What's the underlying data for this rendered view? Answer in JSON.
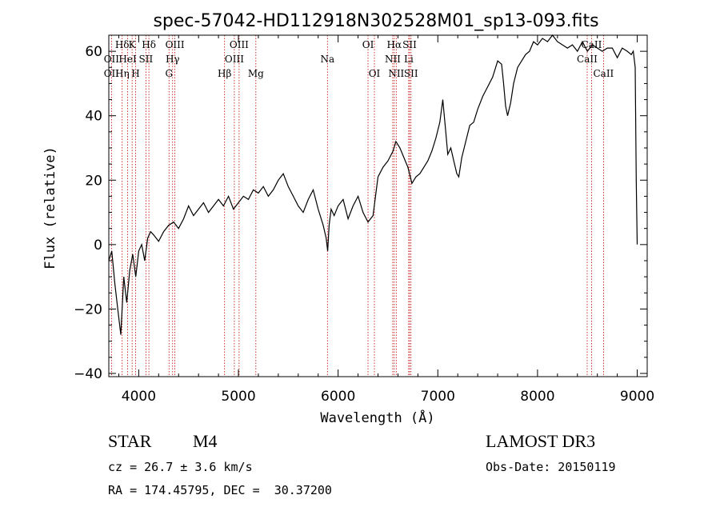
{
  "chart_data": {
    "type": "line",
    "title": "spec-57042-HD112918N302528M01_sp13-093.fits",
    "xlabel": "Wavelength (Å)",
    "ylabel": "Flux (relative)",
    "xlim": [
      3700,
      9100
    ],
    "ylim": [
      -41,
      65
    ],
    "xticks": [
      4000,
      5000,
      6000,
      7000,
      8000,
      9000
    ],
    "yticks": [
      -40,
      -20,
      0,
      20,
      40,
      60
    ],
    "series": [
      {
        "name": "spectrum",
        "x": [
          3700,
          3730,
          3760,
          3790,
          3820,
          3850,
          3880,
          3910,
          3940,
          3970,
          4000,
          4030,
          4060,
          4090,
          4120,
          4150,
          4200,
          4250,
          4300,
          4350,
          4400,
          4450,
          4500,
          4550,
          4600,
          4650,
          4700,
          4750,
          4800,
          4850,
          4900,
          4950,
          5000,
          5050,
          5100,
          5150,
          5200,
          5250,
          5300,
          5350,
          5400,
          5450,
          5500,
          5550,
          5600,
          5650,
          5700,
          5750,
          5800,
          5850,
          5880,
          5895,
          5910,
          5930,
          5960,
          6000,
          6050,
          6100,
          6150,
          6200,
          6250,
          6300,
          6350,
          6400,
          6450,
          6500,
          6550,
          6580,
          6620,
          6660,
          6700,
          6740,
          6780,
          6820,
          6860,
          6900,
          6940,
          6980,
          7020,
          7050,
          7080,
          7100,
          7130,
          7160,
          7190,
          7210,
          7240,
          7280,
          7320,
          7360,
          7400,
          7450,
          7500,
          7550,
          7600,
          7640,
          7660,
          7680,
          7700,
          7730,
          7760,
          7800,
          7840,
          7880,
          7920,
          7960,
          8000,
          8050,
          8100,
          8150,
          8200,
          8250,
          8300,
          8350,
          8400,
          8450,
          8500,
          8550,
          8600,
          8650,
          8700,
          8750,
          8800,
          8850,
          8900,
          8940,
          8960,
          8980,
          8990,
          9000
        ],
        "values": [
          -5,
          -2,
          -12,
          -20,
          -28,
          -10,
          -18,
          -8,
          -3,
          -10,
          -2,
          0,
          -5,
          2,
          4,
          3,
          1,
          4,
          6,
          7,
          5,
          8,
          12,
          9,
          11,
          13,
          10,
          12,
          14,
          12,
          15,
          11,
          13,
          15,
          14,
          17,
          16,
          18,
          15,
          17,
          20,
          22,
          18,
          15,
          12,
          10,
          14,
          17,
          11,
          6,
          2,
          -2,
          6,
          11,
          9,
          12,
          14,
          8,
          12,
          15,
          10,
          7,
          9,
          21,
          24,
          26,
          29,
          32,
          30,
          27,
          24,
          19,
          21,
          22,
          24,
          26,
          29,
          33,
          38,
          45,
          35,
          28,
          30,
          26,
          22,
          21,
          27,
          32,
          37,
          38,
          42,
          46,
          49,
          52,
          57,
          56,
          50,
          43,
          40,
          44,
          50,
          55,
          57,
          59,
          60,
          63,
          62,
          64,
          63,
          65,
          63,
          62,
          61,
          62,
          60,
          63,
          60,
          62,
          61,
          60,
          61,
          61,
          58,
          61,
          60,
          59,
          60,
          55,
          20,
          0
        ]
      }
    ],
    "emission_lines": [
      {
        "label": "Hδ",
        "x": 3834,
        "row": 0
      },
      {
        "label": "OII",
        "x": 3727,
        "row": 1
      },
      {
        "label": "OII",
        "x": 3727,
        "row": 2
      },
      {
        "label": "Hη",
        "x": 3835,
        "row": 2
      },
      {
        "label": "K",
        "x": 3934,
        "row": 0
      },
      {
        "label": "HeI",
        "x": 3889,
        "row": 1
      },
      {
        "label": "H",
        "x": 3969,
        "row": 2
      },
      {
        "label": "Hδ",
        "x": 4102,
        "row": 0
      },
      {
        "label": "SII",
        "x": 4072,
        "row": 1
      },
      {
        "label": "OIII",
        "x": 4363,
        "row": 0
      },
      {
        "label": "Hγ",
        "x": 4340,
        "row": 1
      },
      {
        "label": "G",
        "x": 4304,
        "row": 2
      },
      {
        "label": "OIII",
        "x": 5007,
        "row": 0
      },
      {
        "label": "OIII",
        "x": 4959,
        "row": 1
      },
      {
        "label": "Hβ",
        "x": 4861,
        "row": 2
      },
      {
        "label": "Mg",
        "x": 5175,
        "row": 2
      },
      {
        "label": "Na",
        "x": 5893,
        "row": 1
      },
      {
        "label": "OI",
        "x": 6300,
        "row": 0
      },
      {
        "label": "OI",
        "x": 6364,
        "row": 2
      },
      {
        "label": "Hα",
        "x": 6563,
        "row": 0
      },
      {
        "label": "SII",
        "x": 6717,
        "row": 0
      },
      {
        "label": "NII",
        "x": 6548,
        "row": 1
      },
      {
        "label": "Li",
        "x": 6708,
        "row": 1
      },
      {
        "label": "NII",
        "x": 6583,
        "row": 2
      },
      {
        "label": "SII",
        "x": 6731,
        "row": 2
      },
      {
        "label": "CaII",
        "x": 8542,
        "row": 0
      },
      {
        "label": "CaII",
        "x": 8498,
        "row": 1
      },
      {
        "label": "CaII",
        "x": 8662,
        "row": 2
      }
    ]
  },
  "info": {
    "object_type": "STAR",
    "subclass": "M4",
    "survey": "LAMOST DR3",
    "cz": "cz = 26.7 ± 3.6 km/s",
    "obs_date": "Obs-Date: 20150119",
    "coords": "RA = 174.45795, DEC =  30.37200"
  }
}
